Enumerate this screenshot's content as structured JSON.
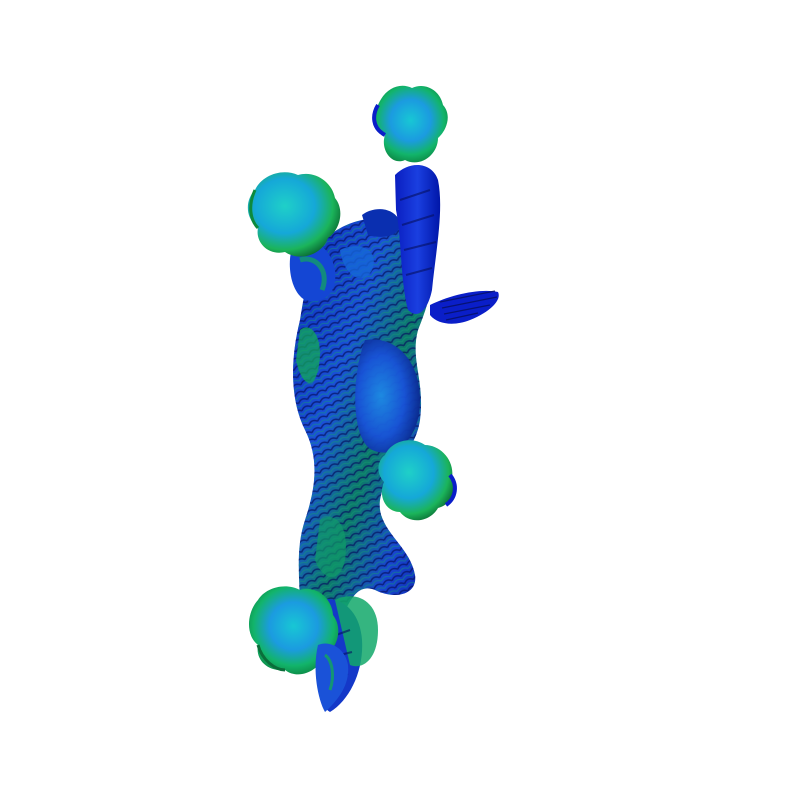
{
  "scene": {
    "background_color": "#ffffff",
    "subject": "render-of-green-blue-shaded-3d-creature-mesh",
    "colors": {
      "deep_blue": "#0a1fd6",
      "navy": "#0016a8",
      "royal_blue": "#1a44e6",
      "azure": "#1e7be8",
      "cyan": "#16c2d6",
      "green": "#11b36a",
      "bright_green": "#2bd14a",
      "dark_green": "#0a6e3a",
      "shadow": "#061060"
    }
  }
}
